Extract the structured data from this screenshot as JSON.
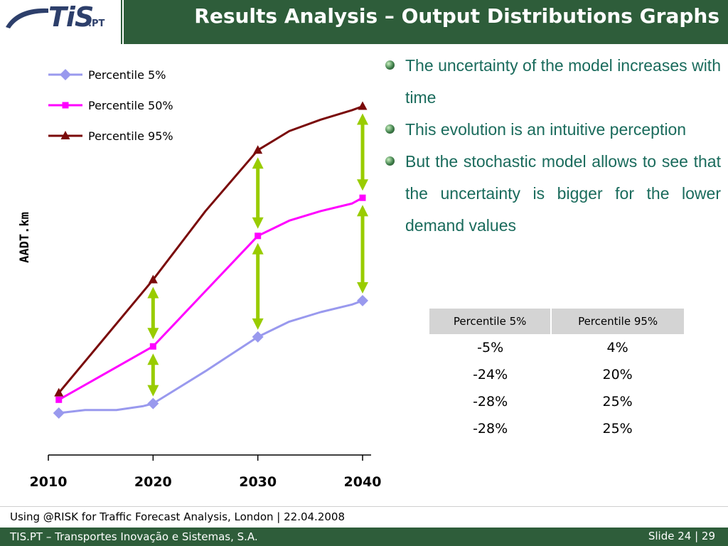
{
  "header": {
    "logo_main": "TiS",
    "logo_suffix": ".PT",
    "title": "Results Analysis – Output Distributions Graphs"
  },
  "colors": {
    "brand_green": "#2e5d3a",
    "p5": "#9999ee",
    "p50": "#ff00ff",
    "p95": "#7a0a0a",
    "arrow": "#99cc00",
    "bullet_text": "#1a6b5c"
  },
  "bullets": [
    "The uncertainty of the model increases with time",
    "This evolution is an intuitive perception",
    "But the stochastic model allows to see that the uncertainty is bigger for the lower demand values"
  ],
  "table": {
    "headers": [
      "Percentile 5%",
      "Percentile 95%"
    ],
    "rows": [
      [
        "-5%",
        "4%"
      ],
      [
        "-24%",
        "20%"
      ],
      [
        "-28%",
        "25%"
      ],
      [
        "-28%",
        "25%"
      ]
    ]
  },
  "chart_data": {
    "type": "line",
    "title": "",
    "xlabel": "",
    "ylabel": "AADT.km",
    "x_ticks": [
      "2010",
      "2020",
      "2030",
      "2040"
    ],
    "x_range": [
      2010,
      2040
    ],
    "ylim": [
      0,
      100
    ],
    "y_tick_labels_shown": false,
    "grid": false,
    "legend": "top-left",
    "series": [
      {
        "name": "Percentile 5%",
        "marker": "diamond",
        "color": "#9999ee",
        "points": [
          [
            2011,
            11
          ],
          [
            2013.5,
            11.8
          ],
          [
            2016.5,
            11.8
          ],
          [
            2019,
            12.8
          ],
          [
            2020,
            13.5
          ],
          [
            2025,
            22
          ],
          [
            2030,
            31
          ],
          [
            2033,
            35
          ],
          [
            2036,
            37.5
          ],
          [
            2039,
            39.5
          ],
          [
            2040,
            40.5
          ]
        ]
      },
      {
        "name": "Percentile 50%",
        "marker": "square",
        "color": "#ff00ff",
        "points": [
          [
            2011,
            14.5
          ],
          [
            2020,
            28.5
          ],
          [
            2025,
            43
          ],
          [
            2030,
            57.5
          ],
          [
            2033,
            61.5
          ],
          [
            2036,
            64
          ],
          [
            2039,
            66
          ],
          [
            2040,
            67.5
          ]
        ]
      },
      {
        "name": "Percentile 95%",
        "marker": "triangle",
        "color": "#7a0a0a",
        "points": [
          [
            2011,
            16.3
          ],
          [
            2020,
            46
          ],
          [
            2025,
            64
          ],
          [
            2030,
            80
          ],
          [
            2033,
            85
          ],
          [
            2036,
            88
          ],
          [
            2039,
            90.5
          ],
          [
            2040,
            91.5
          ]
        ]
      }
    ],
    "arrows": [
      {
        "x": 2020,
        "y_from": 13.5,
        "y_to": 28.5
      },
      {
        "x": 2020,
        "y_from": 28.5,
        "y_to": 46
      },
      {
        "x": 2030,
        "y_from": 31,
        "y_to": 57.5
      },
      {
        "x": 2030,
        "y_from": 57.5,
        "y_to": 80
      },
      {
        "x": 2040,
        "y_from": 40.5,
        "y_to": 67.5
      },
      {
        "x": 2040,
        "y_from": 67.5,
        "y_to": 91.5
      }
    ]
  },
  "footer": {
    "event_text": "Using @RISK for Traffic Forecast Analysis, London  |  22.04.2008",
    "company": "TIS.PT – Transportes Inovação e Sistemas, S.A.",
    "slide": "Slide 24 | 29"
  }
}
